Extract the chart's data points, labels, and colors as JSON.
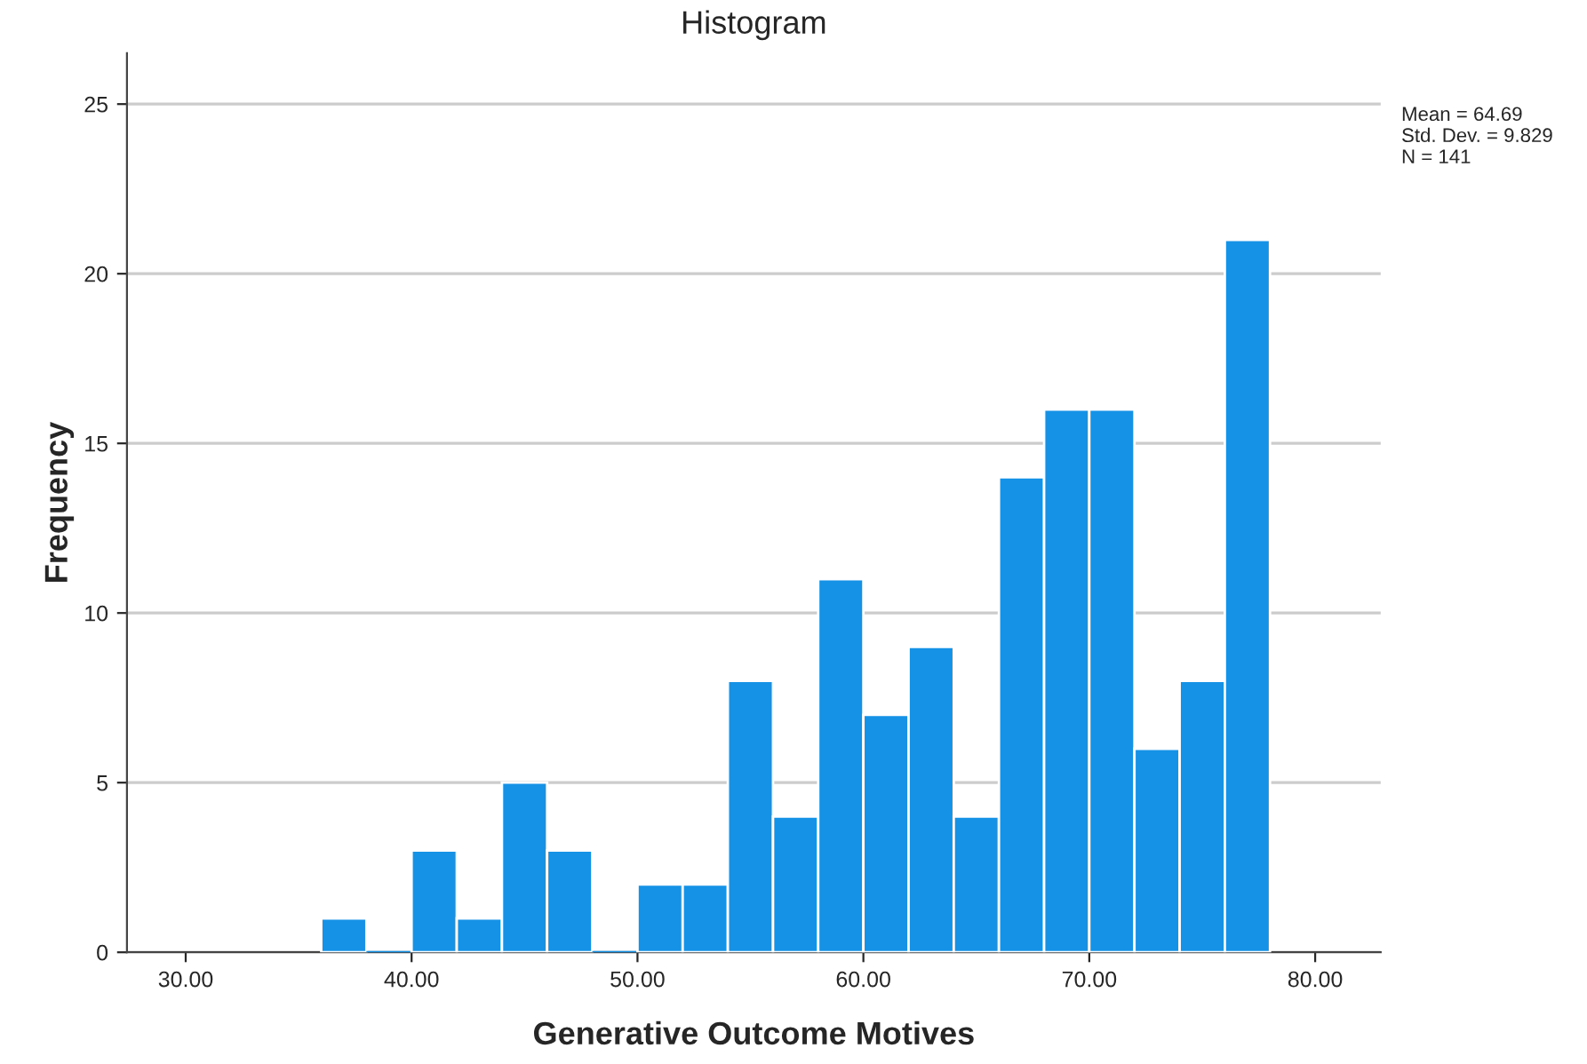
{
  "chart_data": {
    "type": "histogram",
    "title": "Histogram",
    "xlabel": "Generative Outcome Motives",
    "ylabel": "Frequency",
    "bins": [
      36,
      38,
      40,
      42,
      44,
      46,
      48,
      50,
      52,
      54,
      56,
      58,
      60,
      62,
      64,
      66,
      68,
      70,
      72,
      74,
      76,
      78
    ],
    "values": [
      1,
      0,
      3,
      1,
      5,
      3,
      0,
      2,
      2,
      8,
      4,
      11,
      7,
      9,
      4,
      14,
      16,
      16,
      6,
      8,
      21
    ],
    "color": "#1591e6",
    "xlim": [
      27.4,
      82.9
    ],
    "xticks": [
      {
        "value": 30,
        "label": "30.00"
      },
      {
        "value": 40,
        "label": "40.00"
      },
      {
        "value": 50,
        "label": "50.00"
      },
      {
        "value": 60,
        "label": "60.00"
      },
      {
        "value": 70,
        "label": "70.00"
      },
      {
        "value": 80,
        "label": "80.00"
      }
    ],
    "ylim": [
      0,
      26.5
    ],
    "yticks": [
      0,
      5,
      10,
      15,
      20,
      25
    ],
    "grid": "y",
    "annotations": [
      "Mean = 64.69",
      "Std. Dev. = 9.829",
      "N = 141"
    ]
  }
}
